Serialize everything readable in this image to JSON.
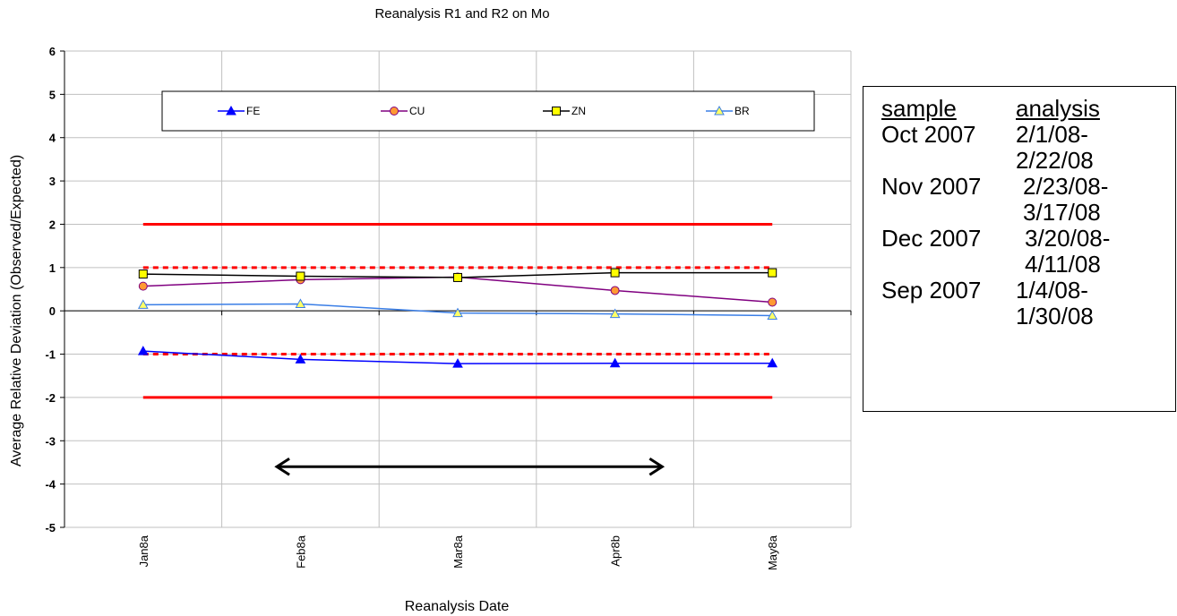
{
  "chart_data": {
    "type": "line",
    "title": "Reanalysis R1 and R2 on Mo",
    "xlabel": "Reanalysis Date",
    "ylabel": "Average Relative Deviation (Observed/Expected)",
    "categories": [
      "Jan8a",
      "Feb8a",
      "Mar8a",
      "Apr8b",
      "May8a"
    ],
    "ylim": [
      -5,
      6
    ],
    "yticks": [
      6,
      5,
      4,
      3,
      2,
      1,
      0,
      -1,
      -2,
      -3,
      -4,
      -5
    ],
    "grid": true,
    "legend_position": "top",
    "series": [
      {
        "name": "FE",
        "values": [
          -0.93,
          -1.12,
          -1.22,
          -1.21,
          -1.21
        ],
        "color": "#0000ff",
        "marker": "triangle",
        "marker_fill": "#0000ff"
      },
      {
        "name": "CU",
        "values": [
          0.57,
          0.72,
          0.78,
          0.47,
          0.2
        ],
        "color": "#800080",
        "marker": "circle",
        "marker_fill": "#ff9933"
      },
      {
        "name": "ZN",
        "values": [
          0.85,
          0.8,
          0.77,
          0.88,
          0.88
        ],
        "color": "#000000",
        "marker": "square",
        "marker_fill": "#ffff00"
      },
      {
        "name": "BR",
        "values": [
          0.14,
          0.16,
          -0.05,
          -0.07,
          -0.11
        ],
        "color": "#3a7ee6",
        "marker": "triangle",
        "marker_fill": "#ffff66"
      }
    ],
    "reference_lines": [
      {
        "y": 2,
        "style": "solid",
        "color": "#ff0000"
      },
      {
        "y": -2,
        "style": "solid",
        "color": "#ff0000"
      },
      {
        "y": 1,
        "style": "dotted",
        "color": "#ff0000"
      },
      {
        "y": -1,
        "style": "dotted",
        "color": "#ff0000"
      }
    ],
    "annotation_arrow": {
      "from_x": 0.85,
      "to_x": 3.3,
      "y": -3.6,
      "style": "double-headed",
      "color": "#000000"
    }
  },
  "info_box": {
    "header_sample": "sample",
    "header_analysis": "analysis",
    "rows": [
      {
        "sample": "Oct 2007",
        "analysis_1": "2/1/08-",
        "analysis_2": "2/22/08"
      },
      {
        "sample": "Nov 2007",
        "analysis_1": "2/23/08-",
        "analysis_2": "3/17/08"
      },
      {
        "sample": "Dec 2007",
        "analysis_1": "3/20/08-",
        "analysis_2": "4/11/08"
      },
      {
        "sample": "Sep 2007",
        "analysis_1": "1/4/08-",
        "analysis_2": "1/30/08"
      }
    ]
  }
}
